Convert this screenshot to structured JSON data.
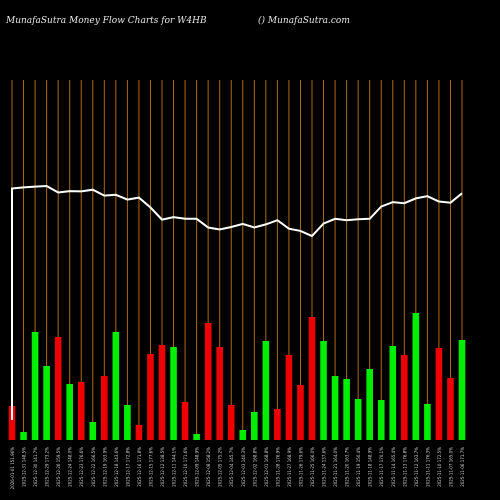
{
  "header": {
    "left": "MunafaSutra  Money Flow  Charts for W4HB",
    "right": "() MunafaSutra.com"
  },
  "chart_data": {
    "type": "bar",
    "title": "Money Flow Charts for W4HB",
    "grid": "vertical lines per bar",
    "colors": {
      "background": "#000000",
      "up": "#00ee00",
      "down": "#ee0000",
      "grid": "#b06a10",
      "line": "#ffffff"
    },
    "categories": [
      "2026-01-01 151.96%",
      "2025-12-31 148.5%",
      "2025-12-30 141.7%",
      "2025-12-29 173.2%",
      "2025-12-26 159.5%",
      "2025-12-24 148.0%",
      "2025-12-23 176.6%",
      "2025-12-22 166.5%",
      "2025-12-19 163.9%",
      "2025-12-18 143.6%",
      "2025-12-17 172.8%",
      "2025-12-16 171.8%",
      "2025-12-15 177.6%",
      "2025-12-12 138.5%",
      "2025-12-11 144.1%",
      "2025-12-10 171.6%",
      "2025-12-09 148.9%",
      "2025-12-08 158.2%",
      "2025-12-05 175.2%",
      "2025-12-04 145.7%",
      "2025-12-03 140.3%",
      "2025-12-02 168.8%",
      "2025-12-01 168.8%",
      "2025-11-28 176.9%",
      "2025-11-27 168.9%",
      "2025-11-26 179.6%",
      "2025-11-25 166.0%",
      "2025-11-24 137.6%",
      "2025-11-21 164.0%",
      "2025-11-20 163.7%",
      "2025-11-19 150.4%",
      "2025-11-18 148.9%",
      "2025-11-17 170.1%",
      "2025-11-14 165.4%",
      "2025-11-13 176.8%",
      "2025-11-12 163.7%",
      "2025-11-11 176.3%",
      "2025-11-10 172.5%",
      "2025-11-07 165.0%",
      "2025-11-06 171.7%"
    ],
    "series": [
      {
        "values": [
          34,
          8,
          108,
          74,
          103,
          56,
          58,
          18,
          64,
          108,
          35,
          15,
          86,
          95,
          93,
          38,
          6,
          117,
          93,
          35,
          10,
          28,
          99,
          31,
          85,
          55,
          123,
          99,
          64,
          61,
          41,
          71,
          40,
          94,
          85,
          127,
          36,
          92,
          62,
          100
        ],
        "colors": [
          "red",
          "green",
          "green",
          "green",
          "red",
          "green",
          "red",
          "green",
          "red",
          "green",
          "green",
          "red",
          "red",
          "red",
          "green",
          "red",
          "green",
          "red",
          "red",
          "red",
          "green",
          "green",
          "green",
          "red",
          "red",
          "red",
          "red",
          "green",
          "green",
          "green",
          "green",
          "green",
          "green",
          "green",
          "red",
          "green",
          "green",
          "red",
          "red",
          "green"
        ]
      }
    ],
    "line": {
      "values": [
        100,
        100.4,
        100.7,
        100.9,
        98.6,
        99.1,
        99.0,
        99.6,
        97.5,
        97.8,
        96.1,
        96.8,
        93.3,
        89.0,
        89.9,
        89.3,
        89.3,
        86.2,
        85.5,
        86.4,
        87.5,
        86.2,
        87.3,
        88.8,
        85.8,
        85.0,
        83.2,
        87.6,
        89.3,
        88.8,
        89.1,
        89.3,
        93.6,
        95.2,
        94.8,
        96.5,
        97.3,
        95.4,
        95.0,
        98.3
      ]
    }
  }
}
